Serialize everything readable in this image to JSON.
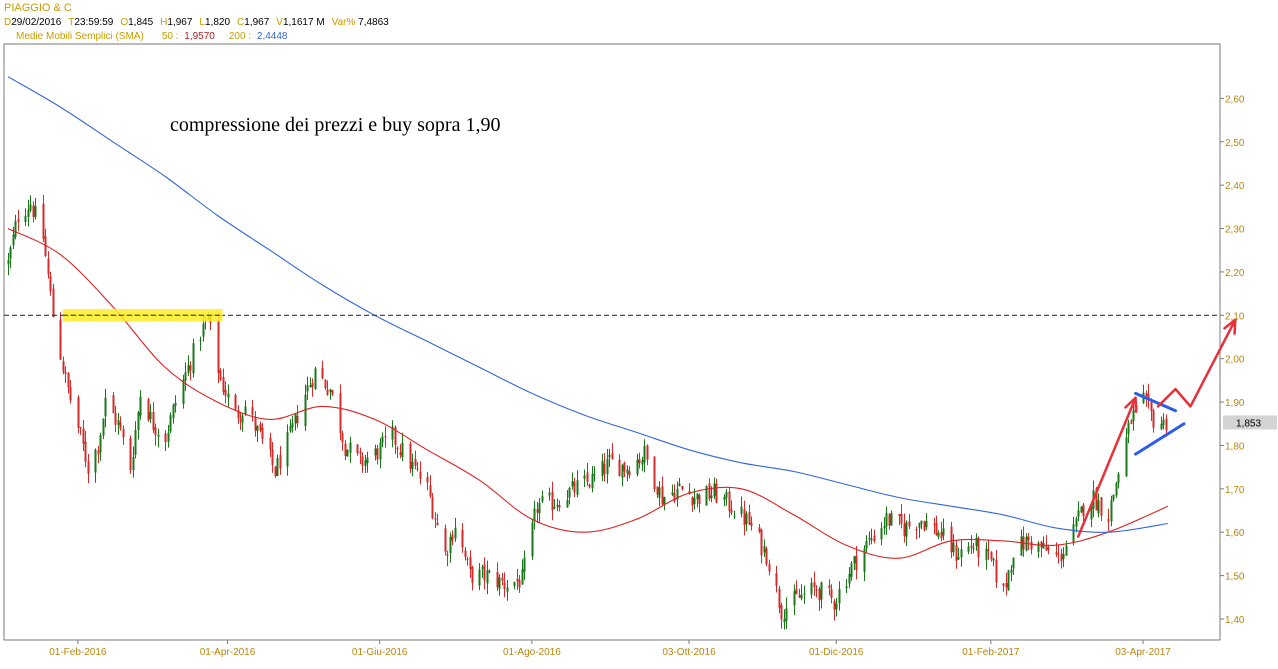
{
  "header": {
    "symbol": "PIAGGIO & C",
    "quote": [
      {
        "key": "D",
        "value": "29/02/2016"
      },
      {
        "key": "T",
        "value": "23:59:59"
      },
      {
        "key": "O",
        "value": "1,845"
      },
      {
        "key": "H",
        "value": "1,967"
      },
      {
        "key": "L",
        "value": "1,820"
      },
      {
        "key": "C",
        "value": "1,967"
      },
      {
        "key": "V",
        "value": "1,1617 M"
      },
      {
        "key": "Var%",
        "value": "7,4863"
      }
    ],
    "indicator": {
      "label": "Medie Mobili Semplici (SMA)",
      "p1_label": "50 :",
      "p1_value": "1,9570",
      "p2_label": "200 :",
      "p2_value": "2,4448"
    }
  },
  "colors": {
    "up": "#1a7a1a",
    "down": "#d42b2b",
    "sma50": "#dd2222",
    "sma200": "#3366dd",
    "axis_text": "#b8860b",
    "key_text": "#c89b00",
    "annotation_red": "#e8303a",
    "annotation_blue": "#2a5ee8",
    "highlight": "#ffee22"
  },
  "chart_data": {
    "type": "candlestick",
    "title": "",
    "xlabel": "",
    "ylabel": "",
    "ylim": [
      1.37,
      2.7
    ],
    "yticks": [
      "2,60",
      "2,50",
      "2,40",
      "2,30",
      "2,20",
      "2,10",
      "2,00",
      "1,90",
      "1,80",
      "1,70",
      "1,60",
      "1,50",
      "1,40"
    ],
    "ytick_values": [
      2.6,
      2.5,
      2.4,
      2.3,
      2.2,
      2.1,
      2.0,
      1.9,
      1.8,
      1.7,
      1.6,
      1.5,
      1.4
    ],
    "xticks": [
      "01-Feb-2016",
      "01-Apr-2016",
      "01-Giu-2016",
      "01-Ago-2016",
      "03-Ott-2016",
      "01-Dic-2016",
      "01-Feb-2017",
      "03-Apr-2017"
    ],
    "x_range": [
      "2016-01-04",
      "2017-04-13"
    ],
    "price_path": [
      [
        "2016-01-04",
        2.22
      ],
      [
        "2016-01-08",
        2.33
      ],
      [
        "2016-01-13",
        2.36
      ],
      [
        "2016-01-18",
        2.28
      ],
      [
        "2016-01-22",
        2.1
      ],
      [
        "2016-01-27",
        1.95
      ],
      [
        "2016-02-02",
        1.82
      ],
      [
        "2016-02-05",
        1.75
      ],
      [
        "2016-02-09",
        1.8
      ],
      [
        "2016-02-12",
        1.9
      ],
      [
        "2016-02-17",
        1.85
      ],
      [
        "2016-02-22",
        1.75
      ],
      [
        "2016-02-26",
        1.92
      ],
      [
        "2016-03-02",
        1.85
      ],
      [
        "2016-03-07",
        1.82
      ],
      [
        "2016-03-11",
        1.9
      ],
      [
        "2016-03-16",
        1.98
      ],
      [
        "2016-03-21",
        2.06
      ],
      [
        "2016-03-24",
        2.09
      ],
      [
        "2016-03-29",
        1.95
      ],
      [
        "2016-04-04",
        1.87
      ],
      [
        "2016-04-08",
        1.89
      ],
      [
        "2016-04-14",
        1.82
      ],
      [
        "2016-04-20",
        1.74
      ],
      [
        "2016-04-26",
        1.82
      ],
      [
        "2016-05-02",
        1.92
      ],
      [
        "2016-05-06",
        1.97
      ],
      [
        "2016-05-12",
        1.93
      ],
      [
        "2016-05-18",
        1.8
      ],
      [
        "2016-05-24",
        1.76
      ],
      [
        "2016-05-30",
        1.78
      ],
      [
        "2016-06-06",
        1.82
      ],
      [
        "2016-06-13",
        1.76
      ],
      [
        "2016-06-20",
        1.7
      ],
      [
        "2016-06-27",
        1.55
      ],
      [
        "2016-07-01",
        1.62
      ],
      [
        "2016-07-07",
        1.5
      ],
      [
        "2016-07-14",
        1.5
      ],
      [
        "2016-07-21",
        1.48
      ],
      [
        "2016-07-28",
        1.49
      ],
      [
        "2016-08-03",
        1.66
      ],
      [
        "2016-08-10",
        1.67
      ],
      [
        "2016-08-18",
        1.7
      ],
      [
        "2016-08-25",
        1.72
      ],
      [
        "2016-09-01",
        1.76
      ],
      [
        "2016-09-08",
        1.75
      ],
      [
        "2016-09-15",
        1.78
      ],
      [
        "2016-09-22",
        1.68
      ],
      [
        "2016-09-29",
        1.7
      ],
      [
        "2016-10-06",
        1.68
      ],
      [
        "2016-10-13",
        1.69
      ],
      [
        "2016-10-20",
        1.66
      ],
      [
        "2016-10-27",
        1.62
      ],
      [
        "2016-11-03",
        1.55
      ],
      [
        "2016-11-09",
        1.42
      ],
      [
        "2016-11-16",
        1.45
      ],
      [
        "2016-11-23",
        1.47
      ],
      [
        "2016-11-30",
        1.44
      ],
      [
        "2016-12-07",
        1.52
      ],
      [
        "2016-12-14",
        1.58
      ],
      [
        "2016-12-21",
        1.63
      ],
      [
        "2016-12-28",
        1.61
      ],
      [
        "2017-01-04",
        1.63
      ],
      [
        "2017-01-11",
        1.6
      ],
      [
        "2017-01-18",
        1.55
      ],
      [
        "2017-01-25",
        1.57
      ],
      [
        "2017-02-01",
        1.53
      ],
      [
        "2017-02-06",
        1.46
      ],
      [
        "2017-02-10",
        1.56
      ],
      [
        "2017-02-16",
        1.58
      ],
      [
        "2017-02-22",
        1.56
      ],
      [
        "2017-02-28",
        1.54
      ],
      [
        "2017-03-06",
        1.6
      ],
      [
        "2017-03-10",
        1.66
      ],
      [
        "2017-03-14",
        1.68
      ],
      [
        "2017-03-20",
        1.64
      ],
      [
        "2017-03-24",
        1.74
      ],
      [
        "2017-03-29",
        1.86
      ],
      [
        "2017-04-03",
        1.9
      ],
      [
        "2017-04-07",
        1.86
      ],
      [
        "2017-04-11",
        1.85
      ],
      [
        "2017-04-13",
        1.86
      ]
    ],
    "series": [
      {
        "name": "50",
        "values": [
          [
            "2016-01-04",
            2.3
          ],
          [
            "2016-01-25",
            2.24
          ],
          [
            "2016-02-15",
            2.12
          ],
          [
            "2016-03-07",
            1.98
          ],
          [
            "2016-03-28",
            1.9
          ],
          [
            "2016-04-18",
            1.86
          ],
          [
            "2016-05-09",
            1.89
          ],
          [
            "2016-05-30",
            1.86
          ],
          [
            "2016-06-20",
            1.79
          ],
          [
            "2016-07-11",
            1.72
          ],
          [
            "2016-08-01",
            1.63
          ],
          [
            "2016-08-22",
            1.6
          ],
          [
            "2016-09-12",
            1.63
          ],
          [
            "2016-10-03",
            1.69
          ],
          [
            "2016-10-24",
            1.7
          ],
          [
            "2016-11-14",
            1.64
          ],
          [
            "2016-12-05",
            1.57
          ],
          [
            "2016-12-26",
            1.54
          ],
          [
            "2017-01-16",
            1.58
          ],
          [
            "2017-02-06",
            1.58
          ],
          [
            "2017-02-27",
            1.57
          ],
          [
            "2017-03-20",
            1.6
          ],
          [
            "2017-04-13",
            1.66
          ]
        ]
      },
      {
        "name": "200",
        "values": [
          [
            "2016-01-04",
            2.65
          ],
          [
            "2016-01-25",
            2.58
          ],
          [
            "2016-02-15",
            2.5
          ],
          [
            "2016-03-07",
            2.42
          ],
          [
            "2016-03-28",
            2.33
          ],
          [
            "2016-04-18",
            2.25
          ],
          [
            "2016-05-09",
            2.17
          ],
          [
            "2016-05-30",
            2.1
          ],
          [
            "2016-06-20",
            2.04
          ],
          [
            "2016-07-11",
            1.98
          ],
          [
            "2016-08-01",
            1.92
          ],
          [
            "2016-08-22",
            1.87
          ],
          [
            "2016-09-12",
            1.83
          ],
          [
            "2016-10-03",
            1.79
          ],
          [
            "2016-10-24",
            1.76
          ],
          [
            "2016-11-14",
            1.74
          ],
          [
            "2016-12-05",
            1.71
          ],
          [
            "2016-12-26",
            1.68
          ],
          [
            "2017-01-16",
            1.66
          ],
          [
            "2017-02-06",
            1.64
          ],
          [
            "2017-02-27",
            1.61
          ],
          [
            "2017-03-20",
            1.6
          ],
          [
            "2017-04-13",
            1.62
          ]
        ]
      }
    ],
    "last_price": "1,853",
    "annotations": {
      "text": "compressione dei prezzi e buy sopra 1,90",
      "resistance_level": 2.1,
      "highlight_zone": {
        "from": "2016-01-26",
        "to": "2016-03-30",
        "low": 2.09,
        "high": 2.11
      },
      "red_arrow_up": [
        [
          "2017-03-08",
          1.59
        ],
        [
          "2017-03-31",
          1.91
        ]
      ],
      "triangle_upper": [
        [
          "2017-03-31",
          1.92
        ],
        [
          "2017-04-12",
          1.88
        ]
      ],
      "triangle_lower": [
        [
          "2017-03-31",
          1.78
        ],
        [
          "2017-04-13",
          1.85
        ]
      ],
      "red_projection": [
        [
          "2017-04-09",
          1.89
        ],
        [
          "2017-04-16",
          1.93
        ],
        [
          "2017-04-22",
          1.89
        ],
        [
          "2017-05-10",
          2.09
        ]
      ]
    },
    "grid": false,
    "legend": "top-left"
  }
}
